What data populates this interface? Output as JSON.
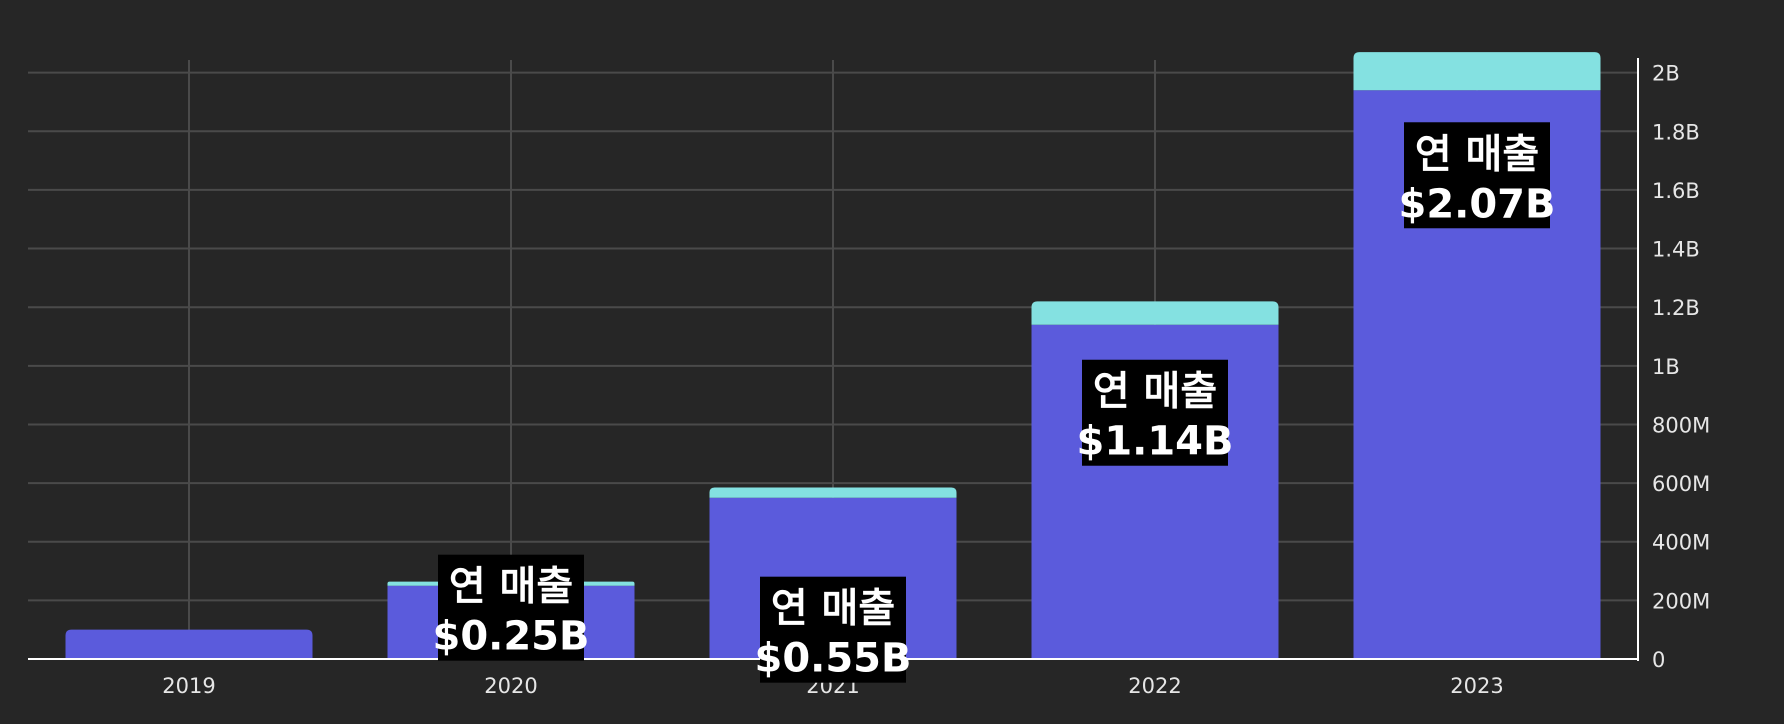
{
  "chart_data": {
    "type": "bar",
    "stacked": true,
    "categories": [
      "2019",
      "2020",
      "2021",
      "2022",
      "2023"
    ],
    "series": [
      {
        "values": [
          0.1,
          0.25,
          0.55,
          1.14,
          1.94
        ],
        "color": "#5b5bdc"
      },
      {
        "values": [
          0.0,
          0.014,
          0.035,
          0.08,
          0.13
        ],
        "color": "#84e1e1"
      }
    ],
    "ylim": [
      0,
      2.05
    ],
    "y_ticks": [
      {
        "value": 0,
        "label": "0"
      },
      {
        "value": 0.2,
        "label": "200M"
      },
      {
        "value": 0.4,
        "label": "400M"
      },
      {
        "value": 0.6,
        "label": "600M"
      },
      {
        "value": 0.8,
        "label": "800M"
      },
      {
        "value": 1.0,
        "label": "1B"
      },
      {
        "value": 1.2,
        "label": "1.2B"
      },
      {
        "value": 1.4,
        "label": "1.4B"
      },
      {
        "value": 1.6,
        "label": "1.6B"
      },
      {
        "value": 1.8,
        "label": "1.8B"
      },
      {
        "value": 2.0,
        "label": "2B"
      }
    ],
    "y_axis_position": "right",
    "grid": true,
    "annotations": [
      {
        "category": "2020",
        "line1": "연 매출",
        "line2": "$0.25B"
      },
      {
        "category": "2021",
        "line1": "연 매출",
        "line2": "$0.55B"
      },
      {
        "category": "2022",
        "line1": "연 매출",
        "line2": "$1.14B"
      },
      {
        "category": "2023",
        "line1": "연 매출",
        "line2": "$2.07B"
      }
    ],
    "colors": {
      "background": "#262626",
      "grid": "#4a4a4a",
      "axis": "#ffffff",
      "text": "#e6e6e6",
      "label_bg": "#000000",
      "label_text": "#ffffff"
    }
  }
}
